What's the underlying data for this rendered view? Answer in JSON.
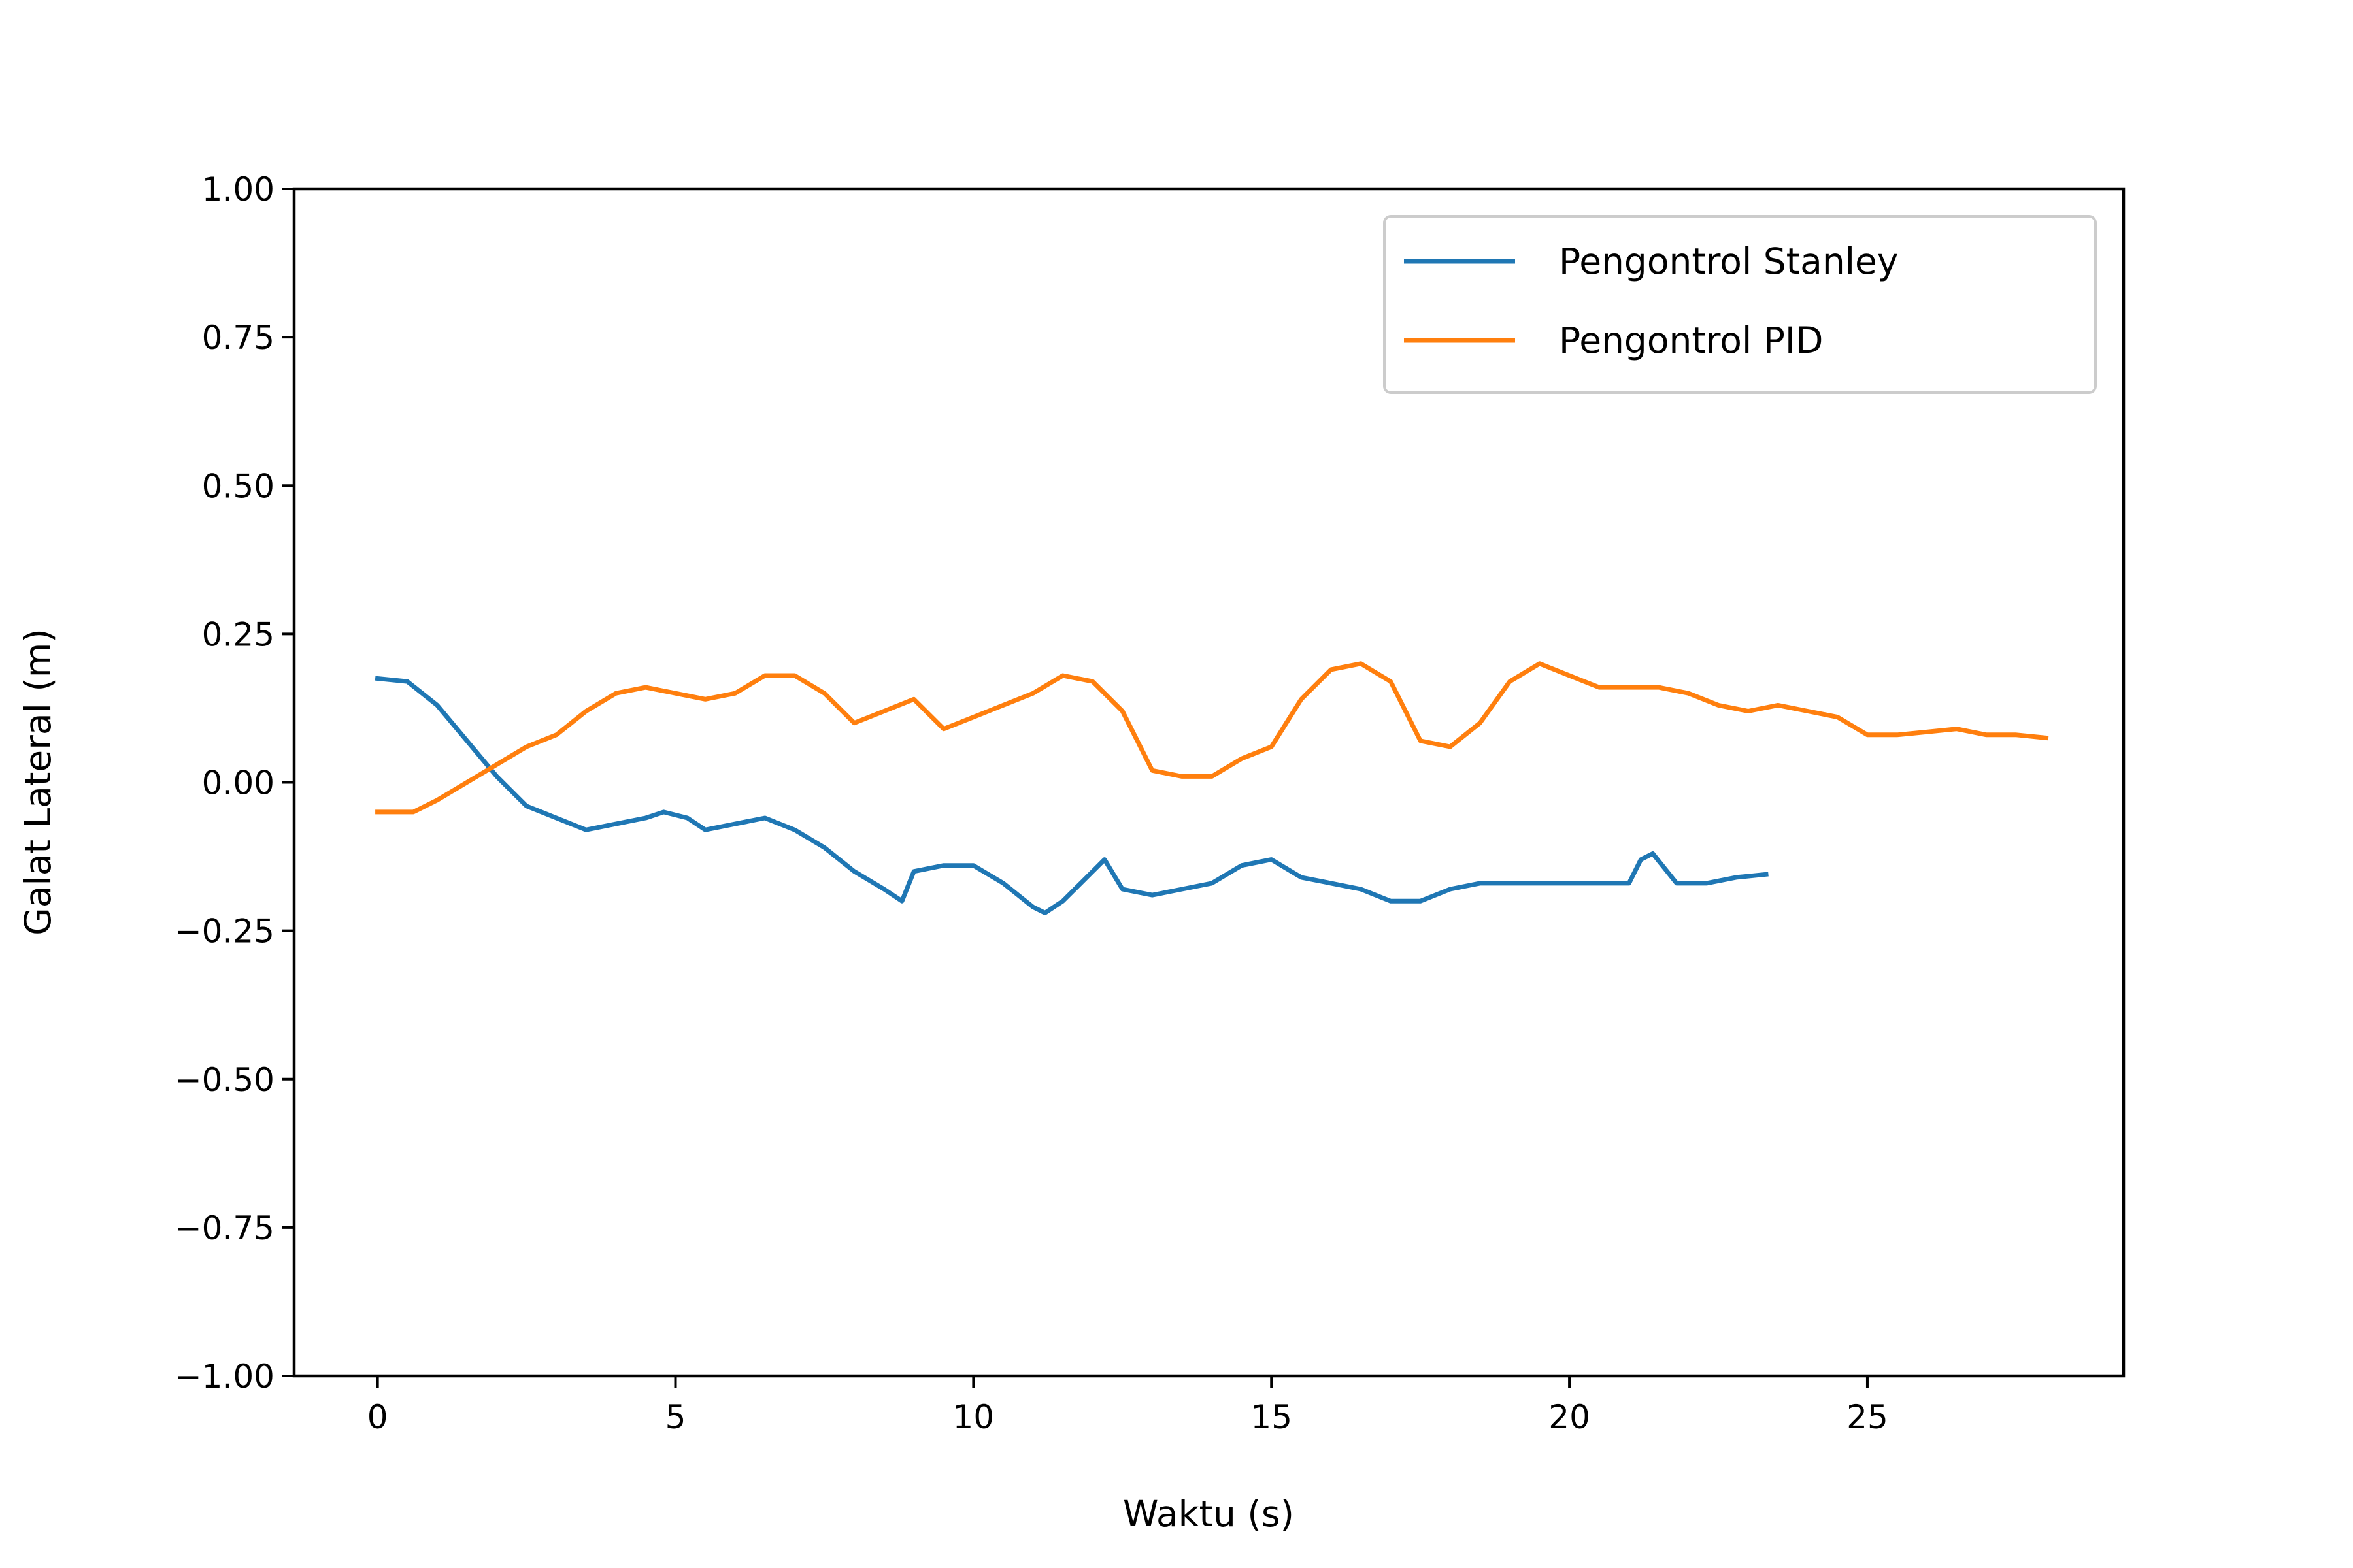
{
  "chart_data": {
    "type": "line",
    "title": "",
    "xlabel": "Waktu (s)",
    "ylabel": "Galat Lateral (m)",
    "xlim": [
      -1.4,
      29.3
    ],
    "ylim": [
      -1.0,
      1.0
    ],
    "xticks": [
      0,
      5,
      10,
      15,
      20,
      25
    ],
    "yticks": [
      1.0,
      0.75,
      0.5,
      0.25,
      0.0,
      -0.25,
      -0.5,
      -0.75,
      -1.0
    ],
    "ytick_labels": [
      "1.00",
      "0.75",
      "0.50",
      "0.25",
      "0.00",
      "−0.25",
      "−0.50",
      "−0.75",
      "−1.00"
    ],
    "xtick_labels": [
      "0",
      "5",
      "10",
      "15",
      "20",
      "25"
    ],
    "grid": false,
    "legend_position": "top-right",
    "series": [
      {
        "name": "Pengontrol Stanley",
        "color": "#1f77b4",
        "x": [
          0.0,
          0.5,
          1.0,
          1.5,
          2.0,
          2.5,
          3.0,
          3.5,
          4.0,
          4.5,
          4.8,
          5.2,
          5.5,
          6.0,
          6.5,
          7.0,
          7.5,
          8.0,
          8.5,
          8.8,
          9.0,
          9.5,
          10.0,
          10.5,
          11.0,
          11.2,
          11.5,
          12.0,
          12.2,
          12.5,
          13.0,
          13.5,
          14.0,
          14.5,
          15.0,
          15.5,
          16.0,
          16.5,
          17.0,
          17.5,
          18.0,
          18.5,
          19.0,
          19.5,
          20.0,
          20.5,
          21.0,
          21.2,
          21.4,
          21.8,
          22.3,
          22.8,
          23.3
        ],
        "y": [
          0.175,
          0.17,
          0.13,
          0.07,
          0.01,
          -0.04,
          -0.06,
          -0.08,
          -0.07,
          -0.06,
          -0.05,
          -0.06,
          -0.08,
          -0.07,
          -0.06,
          -0.08,
          -0.11,
          -0.15,
          -0.18,
          -0.2,
          -0.15,
          -0.14,
          -0.14,
          -0.17,
          -0.21,
          -0.22,
          -0.2,
          -0.15,
          -0.13,
          -0.18,
          -0.19,
          -0.18,
          -0.17,
          -0.14,
          -0.13,
          -0.16,
          -0.17,
          -0.18,
          -0.2,
          -0.2,
          -0.18,
          -0.17,
          -0.17,
          -0.17,
          -0.17,
          -0.17,
          -0.17,
          -0.13,
          -0.12,
          -0.17,
          -0.17,
          -0.16,
          -0.155
        ]
      },
      {
        "name": "Pengontrol PID",
        "color": "#ff7f0e",
        "x": [
          0.0,
          0.6,
          1.0,
          1.5,
          2.0,
          2.5,
          3.0,
          3.5,
          4.0,
          4.5,
          5.0,
          5.5,
          6.0,
          6.5,
          7.0,
          7.5,
          8.0,
          8.5,
          9.0,
          9.5,
          10.0,
          10.5,
          11.0,
          11.5,
          12.0,
          12.5,
          13.0,
          13.5,
          14.0,
          14.5,
          15.0,
          15.5,
          16.0,
          16.5,
          17.0,
          17.5,
          18.0,
          18.5,
          19.0,
          19.5,
          20.0,
          20.5,
          21.0,
          21.5,
          22.0,
          22.5,
          23.0,
          23.5,
          24.0,
          24.5,
          25.0,
          25.5,
          26.0,
          26.5,
          27.0,
          27.5,
          28.0
        ],
        "y": [
          -0.05,
          -0.05,
          -0.03,
          0.0,
          0.03,
          0.06,
          0.08,
          0.12,
          0.15,
          0.16,
          0.15,
          0.14,
          0.15,
          0.18,
          0.18,
          0.15,
          0.1,
          0.12,
          0.14,
          0.09,
          0.11,
          0.13,
          0.15,
          0.18,
          0.17,
          0.12,
          0.02,
          0.01,
          0.01,
          0.04,
          0.06,
          0.14,
          0.19,
          0.2,
          0.17,
          0.07,
          0.06,
          0.1,
          0.17,
          0.2,
          0.18,
          0.16,
          0.16,
          0.16,
          0.15,
          0.13,
          0.12,
          0.13,
          0.12,
          0.11,
          0.08,
          0.08,
          0.085,
          0.09,
          0.08,
          0.08,
          0.075
        ]
      }
    ]
  }
}
